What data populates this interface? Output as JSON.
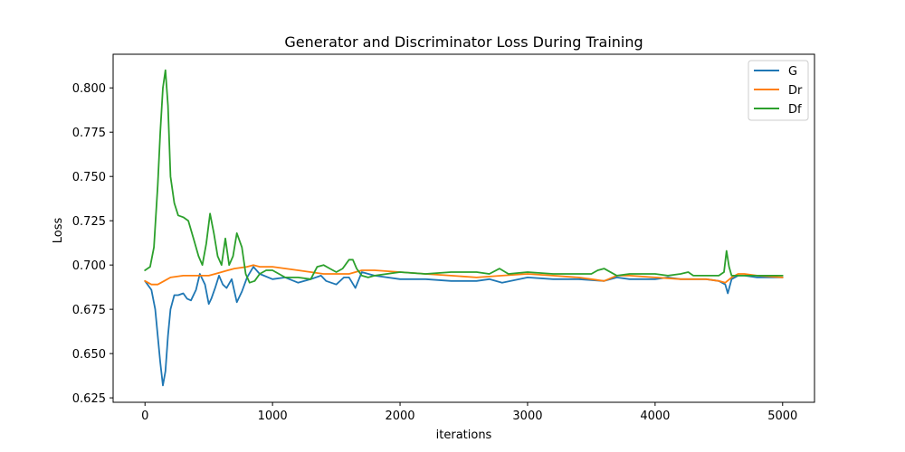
{
  "chart_data": {
    "type": "line",
    "title": "Generator and Discriminator Loss During Training",
    "xlabel": "iterations",
    "ylabel": "Loss",
    "xlim": [
      -250,
      5250
    ],
    "ylim": [
      0.6225,
      0.819
    ],
    "xticks": [
      0,
      1000,
      2000,
      3000,
      4000,
      5000
    ],
    "xtick_labels": [
      "0",
      "1000",
      "2000",
      "3000",
      "4000",
      "5000"
    ],
    "yticks": [
      0.625,
      0.65,
      0.675,
      0.7,
      0.725,
      0.75,
      0.775,
      0.8
    ],
    "ytick_labels": [
      "0.625",
      "0.650",
      "0.675",
      "0.700",
      "0.725",
      "0.750",
      "0.775",
      "0.800"
    ],
    "grid": false,
    "legend_position": "top-right",
    "series": [
      {
        "name": "G",
        "color": "#1f77b4",
        "x": [
          0,
          50,
          80,
          100,
          120,
          140,
          160,
          180,
          200,
          230,
          260,
          300,
          330,
          360,
          400,
          430,
          470,
          500,
          520,
          550,
          580,
          610,
          640,
          680,
          720,
          760,
          800,
          850,
          900,
          1000,
          1100,
          1200,
          1300,
          1380,
          1420,
          1500,
          1560,
          1600,
          1650,
          1700,
          1800,
          2000,
          2200,
          2400,
          2600,
          2700,
          2800,
          3000,
          3200,
          3400,
          3600,
          3700,
          3800,
          3900,
          4000,
          4100,
          4200,
          4300,
          4400,
          4500,
          4550,
          4570,
          4600,
          4650,
          4700,
          4800,
          4900,
          5000
        ],
        "y": [
          0.691,
          0.686,
          0.675,
          0.66,
          0.645,
          0.632,
          0.64,
          0.66,
          0.675,
          0.683,
          0.683,
          0.684,
          0.681,
          0.68,
          0.686,
          0.695,
          0.689,
          0.678,
          0.681,
          0.687,
          0.694,
          0.689,
          0.687,
          0.692,
          0.679,
          0.685,
          0.693,
          0.699,
          0.695,
          0.692,
          0.693,
          0.69,
          0.692,
          0.694,
          0.691,
          0.689,
          0.693,
          0.693,
          0.687,
          0.696,
          0.694,
          0.692,
          0.692,
          0.691,
          0.691,
          0.692,
          0.69,
          0.693,
          0.692,
          0.692,
          0.691,
          0.693,
          0.692,
          0.692,
          0.692,
          0.693,
          0.692,
          0.692,
          0.692,
          0.691,
          0.689,
          0.684,
          0.692,
          0.694,
          0.694,
          0.693,
          0.693,
          0.693
        ]
      },
      {
        "name": "Dr",
        "color": "#ff7f0e",
        "x": [
          0,
          50,
          100,
          150,
          200,
          300,
          400,
          500,
          550,
          600,
          650,
          700,
          800,
          850,
          900,
          1000,
          1200,
          1400,
          1600,
          1700,
          1800,
          2000,
          2200,
          2400,
          2600,
          2800,
          3000,
          3200,
          3400,
          3500,
          3600,
          3700,
          3800,
          4000,
          4200,
          4400,
          4500,
          4550,
          4600,
          4650,
          4700,
          4800,
          5000
        ],
        "y": [
          0.691,
          0.689,
          0.689,
          0.691,
          0.693,
          0.694,
          0.694,
          0.694,
          0.695,
          0.696,
          0.697,
          0.698,
          0.699,
          0.7,
          0.699,
          0.699,
          0.697,
          0.695,
          0.695,
          0.697,
          0.697,
          0.696,
          0.695,
          0.694,
          0.693,
          0.694,
          0.695,
          0.694,
          0.693,
          0.692,
          0.691,
          0.694,
          0.694,
          0.693,
          0.692,
          0.692,
          0.691,
          0.69,
          0.693,
          0.695,
          0.695,
          0.694,
          0.693
        ]
      },
      {
        "name": "Df",
        "color": "#2ca02c",
        "x": [
          0,
          40,
          70,
          100,
          120,
          140,
          160,
          180,
          200,
          230,
          260,
          300,
          340,
          380,
          420,
          450,
          480,
          510,
          540,
          570,
          600,
          630,
          660,
          690,
          720,
          760,
          790,
          820,
          860,
          900,
          950,
          1000,
          1100,
          1200,
          1300,
          1350,
          1400,
          1450,
          1500,
          1550,
          1600,
          1630,
          1660,
          1700,
          1750,
          1800,
          2000,
          2200,
          2400,
          2600,
          2700,
          2780,
          2850,
          3000,
          3200,
          3400,
          3500,
          3550,
          3600,
          3700,
          3800,
          4000,
          4100,
          4200,
          4260,
          4300,
          4400,
          4500,
          4540,
          4560,
          4580,
          4600,
          4700,
          4800,
          5000
        ],
        "y": [
          0.697,
          0.699,
          0.71,
          0.745,
          0.775,
          0.8,
          0.81,
          0.79,
          0.75,
          0.735,
          0.728,
          0.727,
          0.725,
          0.715,
          0.705,
          0.7,
          0.712,
          0.729,
          0.718,
          0.705,
          0.7,
          0.715,
          0.7,
          0.705,
          0.718,
          0.71,
          0.695,
          0.69,
          0.691,
          0.695,
          0.697,
          0.697,
          0.693,
          0.693,
          0.692,
          0.699,
          0.7,
          0.698,
          0.696,
          0.698,
          0.703,
          0.703,
          0.698,
          0.694,
          0.693,
          0.694,
          0.696,
          0.695,
          0.696,
          0.696,
          0.695,
          0.698,
          0.695,
          0.696,
          0.695,
          0.695,
          0.695,
          0.697,
          0.698,
          0.694,
          0.695,
          0.695,
          0.694,
          0.695,
          0.696,
          0.694,
          0.694,
          0.694,
          0.696,
          0.708,
          0.699,
          0.694,
          0.694,
          0.694,
          0.694
        ]
      }
    ]
  }
}
